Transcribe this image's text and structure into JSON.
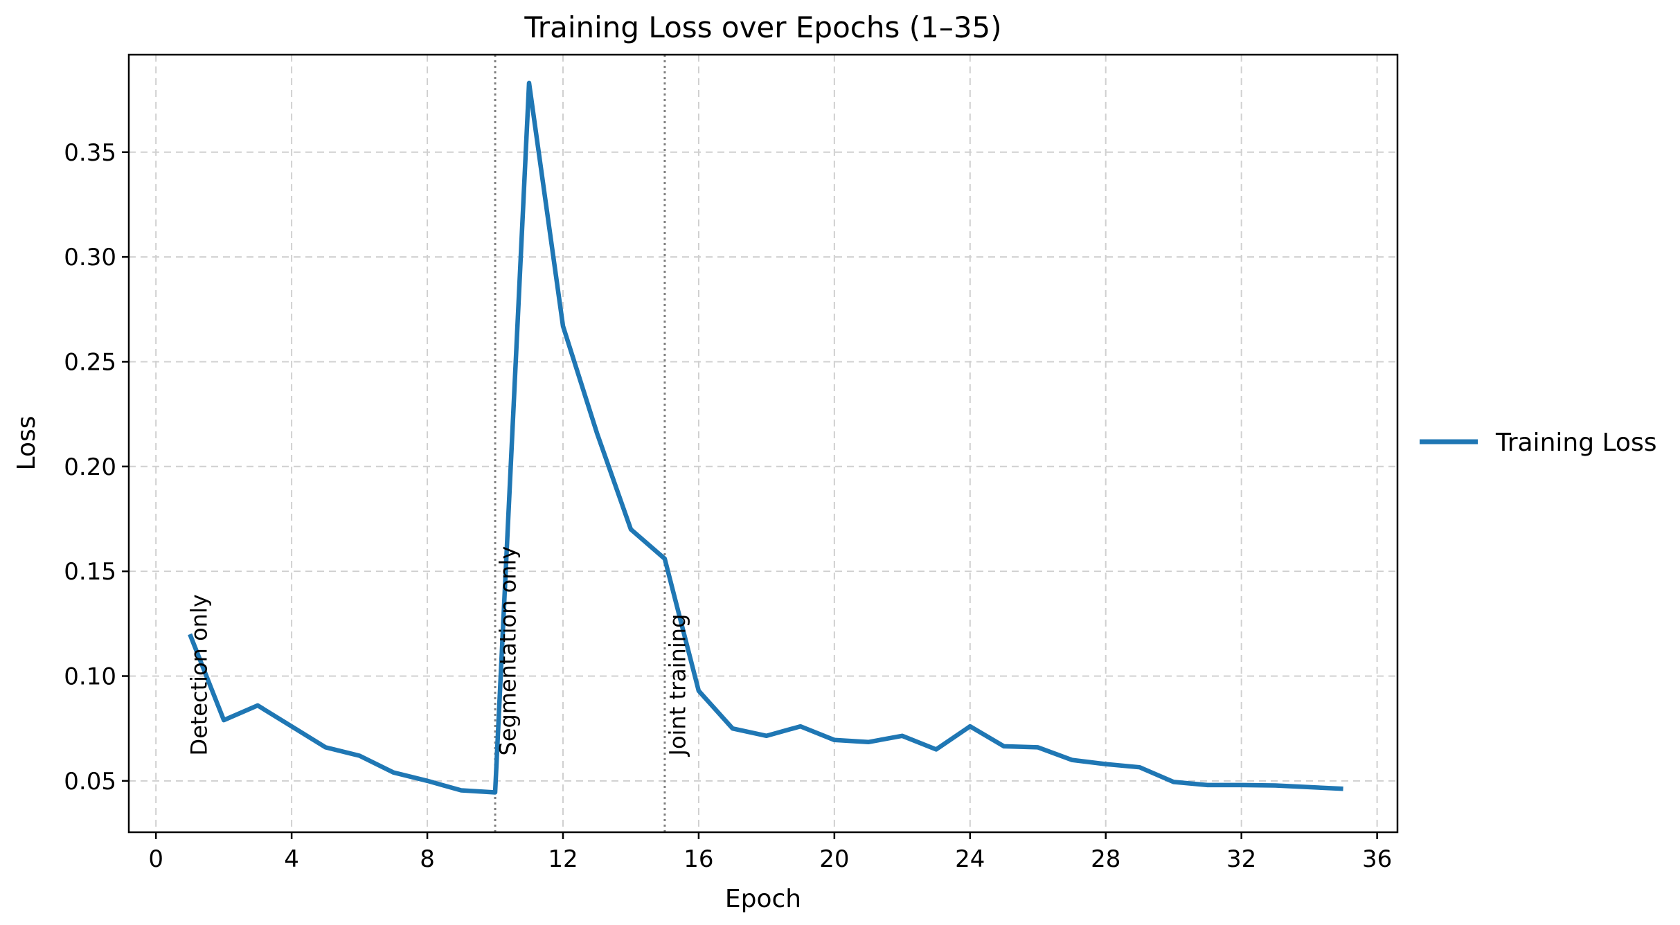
{
  "chart_data": {
    "type": "line",
    "title": "Training Loss over Epochs (1–35)",
    "xlabel": "Epoch",
    "ylabel": "Loss",
    "xlim": [
      -0.8,
      36.6
    ],
    "ylim": [
      0.0255,
      0.3965
    ],
    "xticks": [
      0,
      4,
      8,
      12,
      16,
      20,
      24,
      28,
      32,
      36
    ],
    "xtick_labels": [
      "0",
      "4",
      "8",
      "12",
      "16",
      "20",
      "24",
      "28",
      "32",
      "36"
    ],
    "yticks": [
      0.05,
      0.1,
      0.15,
      0.2,
      0.25,
      0.3,
      0.35
    ],
    "ytick_labels": [
      "0.05",
      "0.10",
      "0.15",
      "0.20",
      "0.25",
      "0.30",
      "0.35"
    ],
    "grid": true,
    "legend_position": "outside-right",
    "series": [
      {
        "name": "Training Loss",
        "color": "#1f77b4",
        "x": [
          1,
          2,
          3,
          4,
          5,
          6,
          7,
          8,
          9,
          10,
          11,
          12,
          13,
          14,
          15,
          16,
          17,
          18,
          19,
          20,
          21,
          22,
          23,
          24,
          25,
          26,
          27,
          28,
          29,
          30,
          31,
          32,
          33,
          34,
          35
        ],
        "y": [
          0.12,
          0.079,
          0.086,
          0.076,
          0.066,
          0.062,
          0.054,
          0.05,
          0.0455,
          0.0445,
          0.383,
          0.267,
          0.216,
          0.17,
          0.156,
          0.093,
          0.075,
          0.0715,
          0.076,
          0.0695,
          0.0685,
          0.0715,
          0.065,
          0.076,
          0.0665,
          0.066,
          0.06,
          0.058,
          0.0565,
          0.0495,
          0.048,
          0.048,
          0.0478,
          0.047,
          0.0462
        ]
      }
    ],
    "annotations": [
      {
        "label": "Detection only",
        "x": 1.5,
        "y": 0.062
      },
      {
        "label": "Segmentation only",
        "x": 10.6,
        "y": 0.062
      },
      {
        "label": "Joint training",
        "x": 15.6,
        "y": 0.062
      }
    ],
    "vlines": [
      {
        "x": 10,
        "style": "dotted",
        "color": "#808080"
      },
      {
        "x": 15,
        "style": "dotted",
        "color": "#808080"
      }
    ]
  }
}
